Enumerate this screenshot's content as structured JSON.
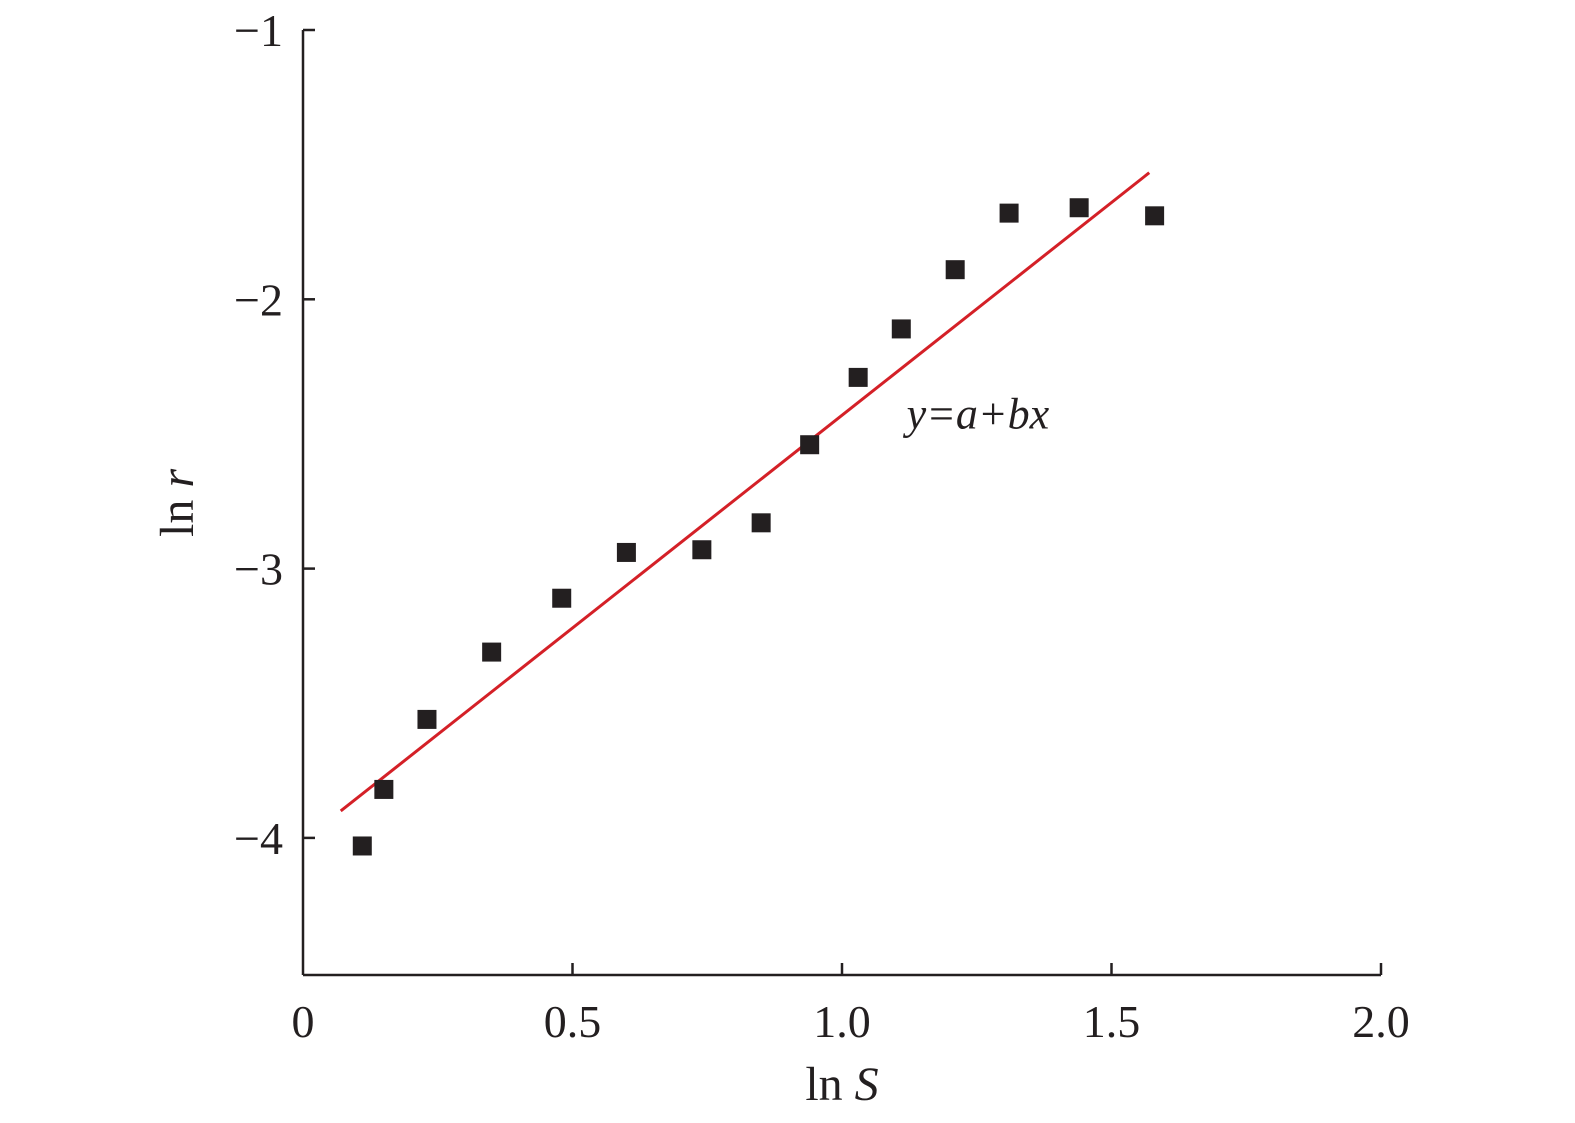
{
  "chart_data": {
    "type": "scatter",
    "xlabel": "ln S",
    "xlabel_parts": {
      "prefix": "ln ",
      "var": "S"
    },
    "ylabel": "ln r",
    "ylabel_parts": {
      "prefix": "ln ",
      "var": "r"
    },
    "xlim": [
      0,
      2.0
    ],
    "ylim": [
      -4.5,
      -1
    ],
    "x_ticks": [
      0,
      0.5,
      1.0,
      1.5,
      2.0
    ],
    "x_tick_labels": [
      "0",
      "0.5",
      "1.0",
      "1.5",
      "2.0"
    ],
    "y_ticks": [
      -1,
      -2,
      -3,
      -4
    ],
    "y_tick_labels": [
      "−1",
      "−2",
      "−3",
      "−4"
    ],
    "grid": false,
    "series": [
      {
        "type": "scatter",
        "marker": "square",
        "color": "#231f20",
        "points": [
          {
            "x": 0.11,
            "y": -4.03
          },
          {
            "x": 0.15,
            "y": -3.82
          },
          {
            "x": 0.23,
            "y": -3.56
          },
          {
            "x": 0.35,
            "y": -3.31
          },
          {
            "x": 0.48,
            "y": -3.11
          },
          {
            "x": 0.6,
            "y": -2.94
          },
          {
            "x": 0.74,
            "y": -2.93
          },
          {
            "x": 0.85,
            "y": -2.83
          },
          {
            "x": 0.94,
            "y": -2.54
          },
          {
            "x": 1.03,
            "y": -2.29
          },
          {
            "x": 1.11,
            "y": -2.11
          },
          {
            "x": 1.21,
            "y": -1.89
          },
          {
            "x": 1.31,
            "y": -1.68
          },
          {
            "x": 1.44,
            "y": -1.66
          },
          {
            "x": 1.58,
            "y": -1.69
          }
        ]
      },
      {
        "type": "line",
        "color": "#d42027",
        "points": [
          {
            "x": 0.07,
            "y": -3.9
          },
          {
            "x": 1.57,
            "y": -1.53
          }
        ]
      }
    ],
    "annotations": [
      {
        "text": "y=a+bx",
        "x": 1.12,
        "y": -2.48
      }
    ]
  }
}
